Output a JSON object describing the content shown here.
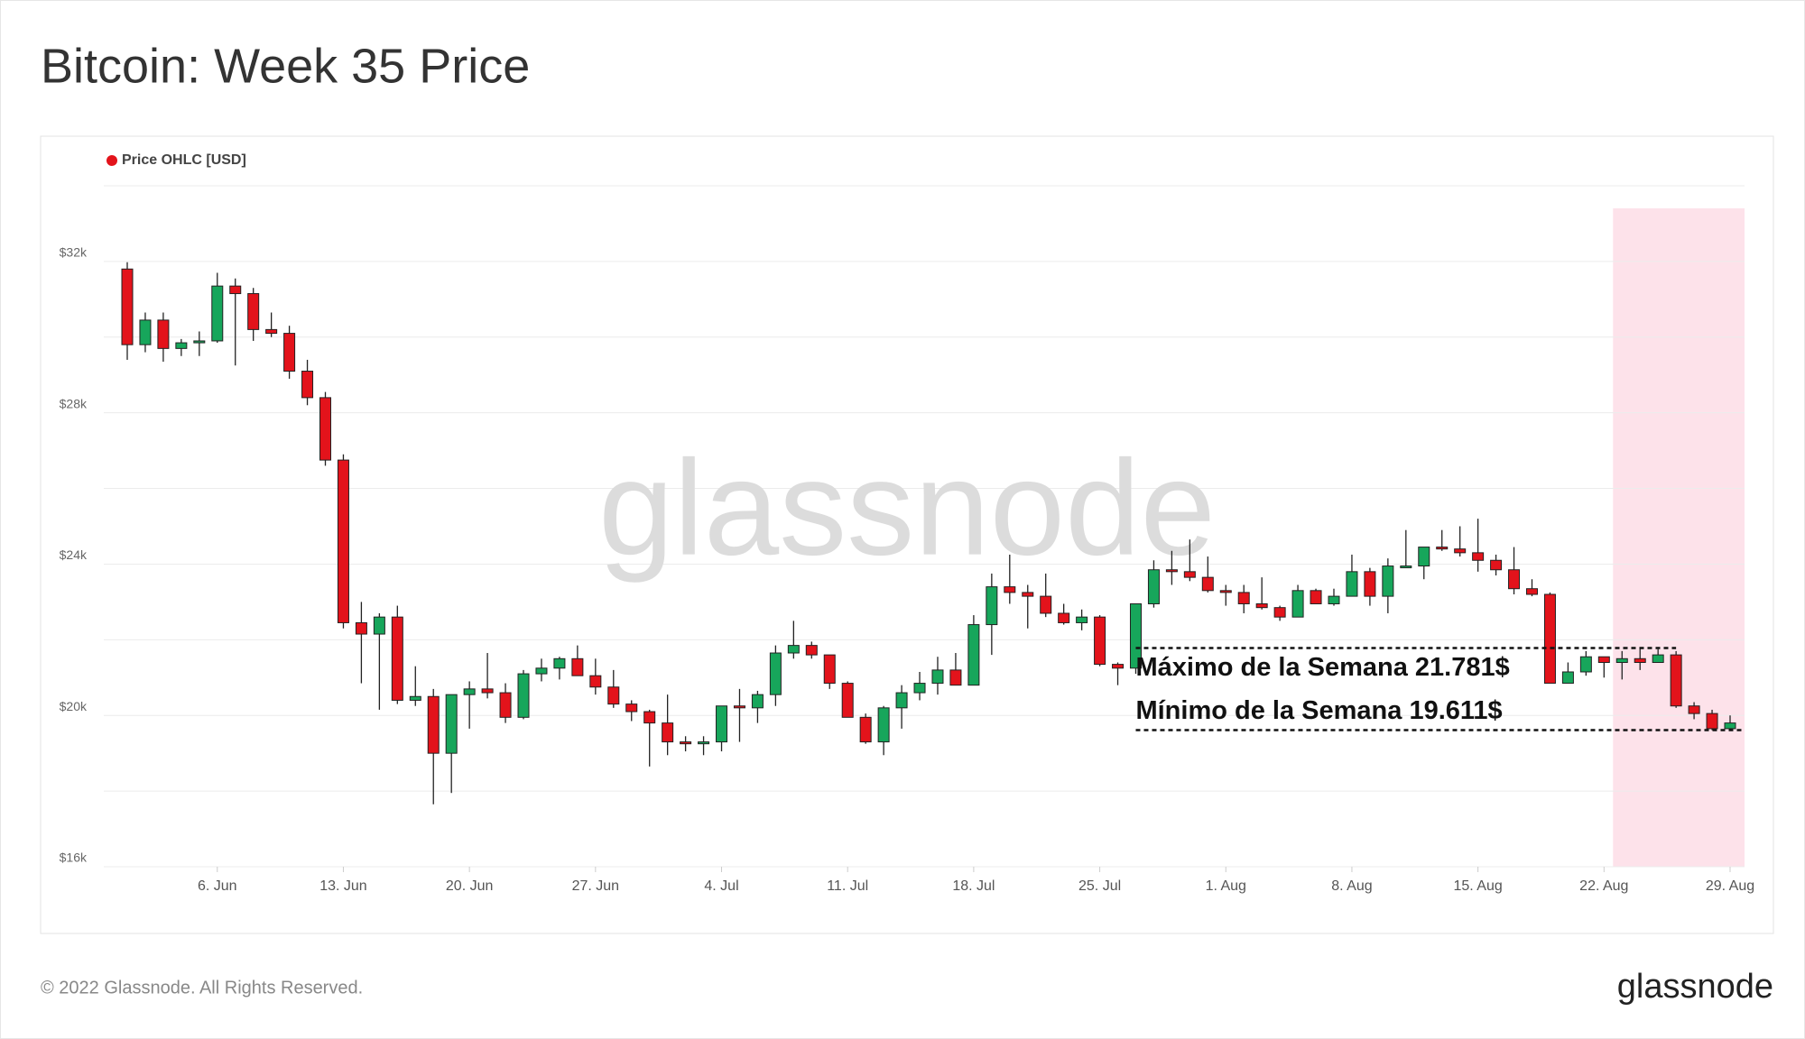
{
  "chart_data": {
    "type": "candlestick",
    "title": "Bitcoin: Week 35 Price",
    "categories": [
      null,
      null,
      null,
      null,
      null,
      "6. Jun",
      null,
      null,
      null,
      null,
      null,
      null,
      "13. Jun",
      null,
      null,
      null,
      null,
      null,
      null,
      "20. Jun",
      null,
      null,
      null,
      null,
      null,
      null,
      "27. Jun",
      null,
      null,
      null,
      null,
      null,
      null,
      "4. Jul",
      null,
      null,
      null,
      null,
      null,
      null,
      "11. Jul",
      null,
      null,
      null,
      null,
      null,
      null,
      "18. Jul",
      null,
      null,
      null,
      null,
      null,
      null,
      "25. Jul",
      null,
      null,
      null,
      null,
      null,
      null,
      "1. Aug",
      null,
      null,
      null,
      null,
      null,
      null,
      "8. Aug",
      null,
      null,
      null,
      null,
      null,
      null,
      "15. Aug",
      null,
      null,
      null,
      null,
      null,
      null,
      "22. Aug",
      null,
      null,
      null,
      null,
      null,
      null,
      "29. Aug"
    ],
    "series": [
      {
        "name": "Price OHLC [USD]",
        "color": "#e3131b",
        "up_color": "#17a65b",
        "down_color": "#e3131b",
        "open": [
          31800,
          29800,
          30450,
          29700,
          29850,
          29900,
          31350,
          31150,
          30200,
          30100,
          29100,
          28400,
          26750,
          22450,
          22150,
          22600,
          20400,
          20500,
          19000,
          20550,
          20700,
          20600,
          19950,
          21100,
          21250,
          21500,
          21050,
          20750,
          20300,
          20100,
          19800,
          19300,
          19250,
          19300,
          20250,
          20200,
          20550,
          21650,
          21850,
          21600,
          20850,
          19950,
          19300,
          20200,
          20600,
          20850,
          21200,
          20800,
          22400,
          23400,
          23250,
          23150,
          22700,
          22450,
          22600,
          21350,
          21250,
          22950,
          23850,
          23800,
          23650,
          23300,
          23250,
          22950,
          22850,
          22600,
          23300,
          22950,
          23150,
          23800,
          23150,
          23950,
          23950,
          24450,
          24400,
          24300,
          24100,
          23850,
          23350,
          23200,
          20850,
          21150,
          21550,
          21400,
          21500,
          21400,
          21600,
          20250,
          20050,
          19650
        ],
        "high": [
          31980,
          30650,
          30650,
          29950,
          30150,
          31700,
          31550,
          31300,
          30650,
          30300,
          29400,
          28550,
          26900,
          23000,
          22700,
          22900,
          21300,
          20700,
          20550,
          20900,
          21650,
          20850,
          21200,
          21500,
          21550,
          21850,
          21500,
          21200,
          20400,
          20150,
          20550,
          19450,
          19450,
          20250,
          20700,
          20650,
          21850,
          22500,
          21950,
          21600,
          20900,
          20050,
          20250,
          20800,
          21150,
          21550,
          21650,
          22650,
          23750,
          24250,
          23450,
          23750,
          22950,
          22800,
          22650,
          21400,
          22950,
          24100,
          24350,
          24650,
          24200,
          23450,
          23450,
          23650,
          22900,
          23450,
          23350,
          23350,
          24250,
          23900,
          24150,
          24900,
          24450,
          24900,
          25000,
          25200,
          24250,
          24450,
          23600,
          23250,
          21400,
          21700,
          21550,
          21700,
          21781,
          21750,
          21700,
          20350,
          20150,
          20000
        ],
        "low": [
          29400,
          29600,
          29350,
          29500,
          29500,
          29850,
          29250,
          29900,
          30000,
          28900,
          28200,
          26600,
          22300,
          20850,
          20150,
          20300,
          20250,
          17650,
          17950,
          19650,
          20450,
          19800,
          19900,
          20900,
          20950,
          21050,
          20550,
          20200,
          19850,
          18650,
          18950,
          19050,
          18950,
          19050,
          19300,
          19800,
          20250,
          21500,
          21500,
          20700,
          19950,
          19250,
          18950,
          19650,
          20400,
          20550,
          20800,
          20800,
          21600,
          22950,
          22300,
          22600,
          22400,
          22250,
          21300,
          20800,
          21100,
          22850,
          23450,
          23550,
          23250,
          22900,
          22700,
          22800,
          22500,
          22600,
          22950,
          22900,
          23150,
          22900,
          22700,
          23900,
          23600,
          24350,
          24200,
          23800,
          23700,
          23200,
          23150,
          20850,
          20850,
          21050,
          21000,
          20950,
          21200,
          21400,
          20200,
          19900,
          19611,
          19630
        ],
        "close": [
          29800,
          30450,
          29700,
          29850,
          29900,
          31350,
          31150,
          30200,
          30100,
          29100,
          28400,
          26750,
          22450,
          22150,
          22600,
          20400,
          20500,
          19000,
          20550,
          20700,
          20600,
          19950,
          21100,
          21250,
          21500,
          21050,
          20750,
          20300,
          20100,
          19800,
          19300,
          19250,
          19300,
          20250,
          20200,
          20550,
          21650,
          21850,
          21600,
          20850,
          19950,
          19300,
          20200,
          20600,
          20850,
          21200,
          20800,
          22400,
          23400,
          23250,
          23150,
          22700,
          22450,
          22600,
          21350,
          21250,
          22950,
          23850,
          23800,
          23650,
          23300,
          23250,
          22950,
          22850,
          22600,
          23300,
          22950,
          23150,
          23800,
          23150,
          23950,
          23950,
          24450,
          24400,
          24300,
          24100,
          23850,
          23350,
          23200,
          20850,
          21150,
          21550,
          21400,
          21500,
          21400,
          21600,
          20250,
          20050,
          19650,
          19800
        ]
      }
    ],
    "ylim": [
      16000,
      34000
    ],
    "yticks": [
      {
        "value": 16000,
        "label": "$16k"
      },
      {
        "value": 20000,
        "label": "$20k"
      },
      {
        "value": 24000,
        "label": "$24k"
      },
      {
        "value": 28000,
        "label": "$28k"
      },
      {
        "value": 32000,
        "label": "$32k"
      }
    ],
    "minor_yticks": [
      18000,
      22000,
      26000,
      30000,
      34000
    ],
    "grid": true,
    "highlight": {
      "start_index": 83,
      "end_index": 89,
      "color": "#fde2ea"
    },
    "annotations": [
      {
        "text": "Máximo de la Semana 21.781$",
        "value": 21781,
        "from_index": 56,
        "to_index": 86
      },
      {
        "text": "Mínimo de la Semana 19.611$",
        "value": 19611,
        "from_index": 56,
        "to_index": 89
      }
    ],
    "watermark": "glassnode",
    "footer": "© 2022 Glassnode. All Rights Reserved.",
    "logo": "glassnode"
  }
}
